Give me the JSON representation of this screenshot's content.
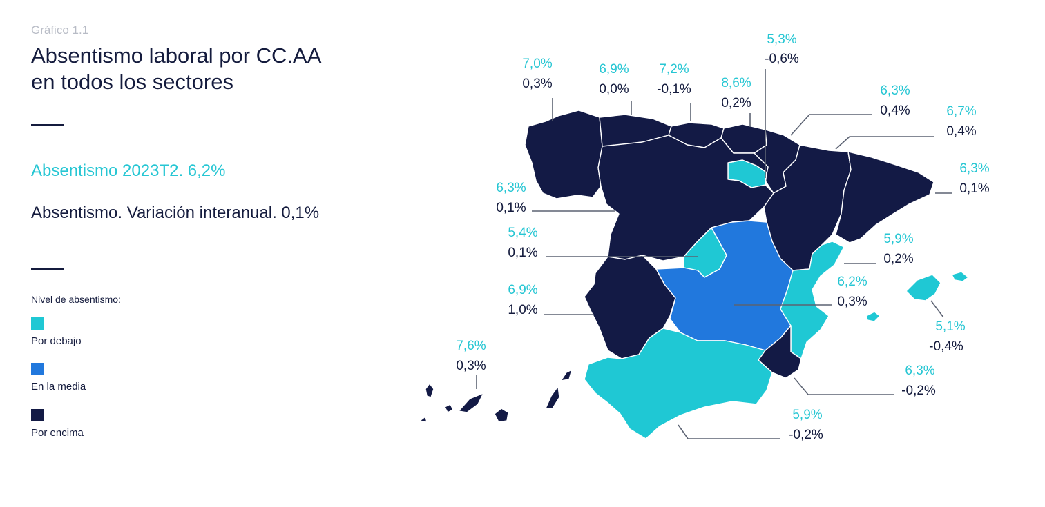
{
  "header": {
    "kicker": "Gráfico 1.1",
    "title_line1": "Absentismo laboral por CC.AA",
    "title_line2": "en todos los sectores"
  },
  "summary": {
    "national": "Absentismo 2023T2. 6,2%",
    "variation": "Absentismo. Variación interanual. 0,1%"
  },
  "legend": {
    "title": "Nivel de absentismo:",
    "items": [
      {
        "label": "Por debajo",
        "color": "#1fc8d4"
      },
      {
        "label": "En la media",
        "color": "#2178dd"
      },
      {
        "label": "Por encima",
        "color": "#131a45"
      }
    ]
  },
  "regions": [
    {
      "id": "galicia",
      "value": "7,0%",
      "variation": "0,3%"
    },
    {
      "id": "asturias",
      "value": "6,9%",
      "variation": "0,0%"
    },
    {
      "id": "cantabria",
      "value": "7,2%",
      "variation": "-0,1%"
    },
    {
      "id": "pais-vasco",
      "value": "8,6%",
      "variation": "0,2%"
    },
    {
      "id": "la-rioja",
      "value": "5,3%",
      "variation": "-0,6%"
    },
    {
      "id": "navarra",
      "value": "6,3%",
      "variation": "0,4%"
    },
    {
      "id": "aragon",
      "value": "6,7%",
      "variation": "0,4%"
    },
    {
      "id": "cataluna",
      "value": "6,3%",
      "variation": "0,1%"
    },
    {
      "id": "castilla-y-leon",
      "value": "6,3%",
      "variation": "0,1%"
    },
    {
      "id": "madrid",
      "value": "5,4%",
      "variation": "0,1%"
    },
    {
      "id": "c-valenciana",
      "value": "5,9%",
      "variation": "0,2%"
    },
    {
      "id": "castilla-la-mancha",
      "value": "6,2%",
      "variation": "0,3%"
    },
    {
      "id": "extremadura",
      "value": "6,9%",
      "variation": "1,0%"
    },
    {
      "id": "baleares",
      "value": "5,1%",
      "variation": "-0,4%"
    },
    {
      "id": "canarias",
      "value": "7,6%",
      "variation": "0,3%"
    },
    {
      "id": "murcia",
      "value": "6,3%",
      "variation": "-0,2%"
    },
    {
      "id": "andalucia",
      "value": "5,9%",
      "variation": "-0,2%"
    }
  ]
}
